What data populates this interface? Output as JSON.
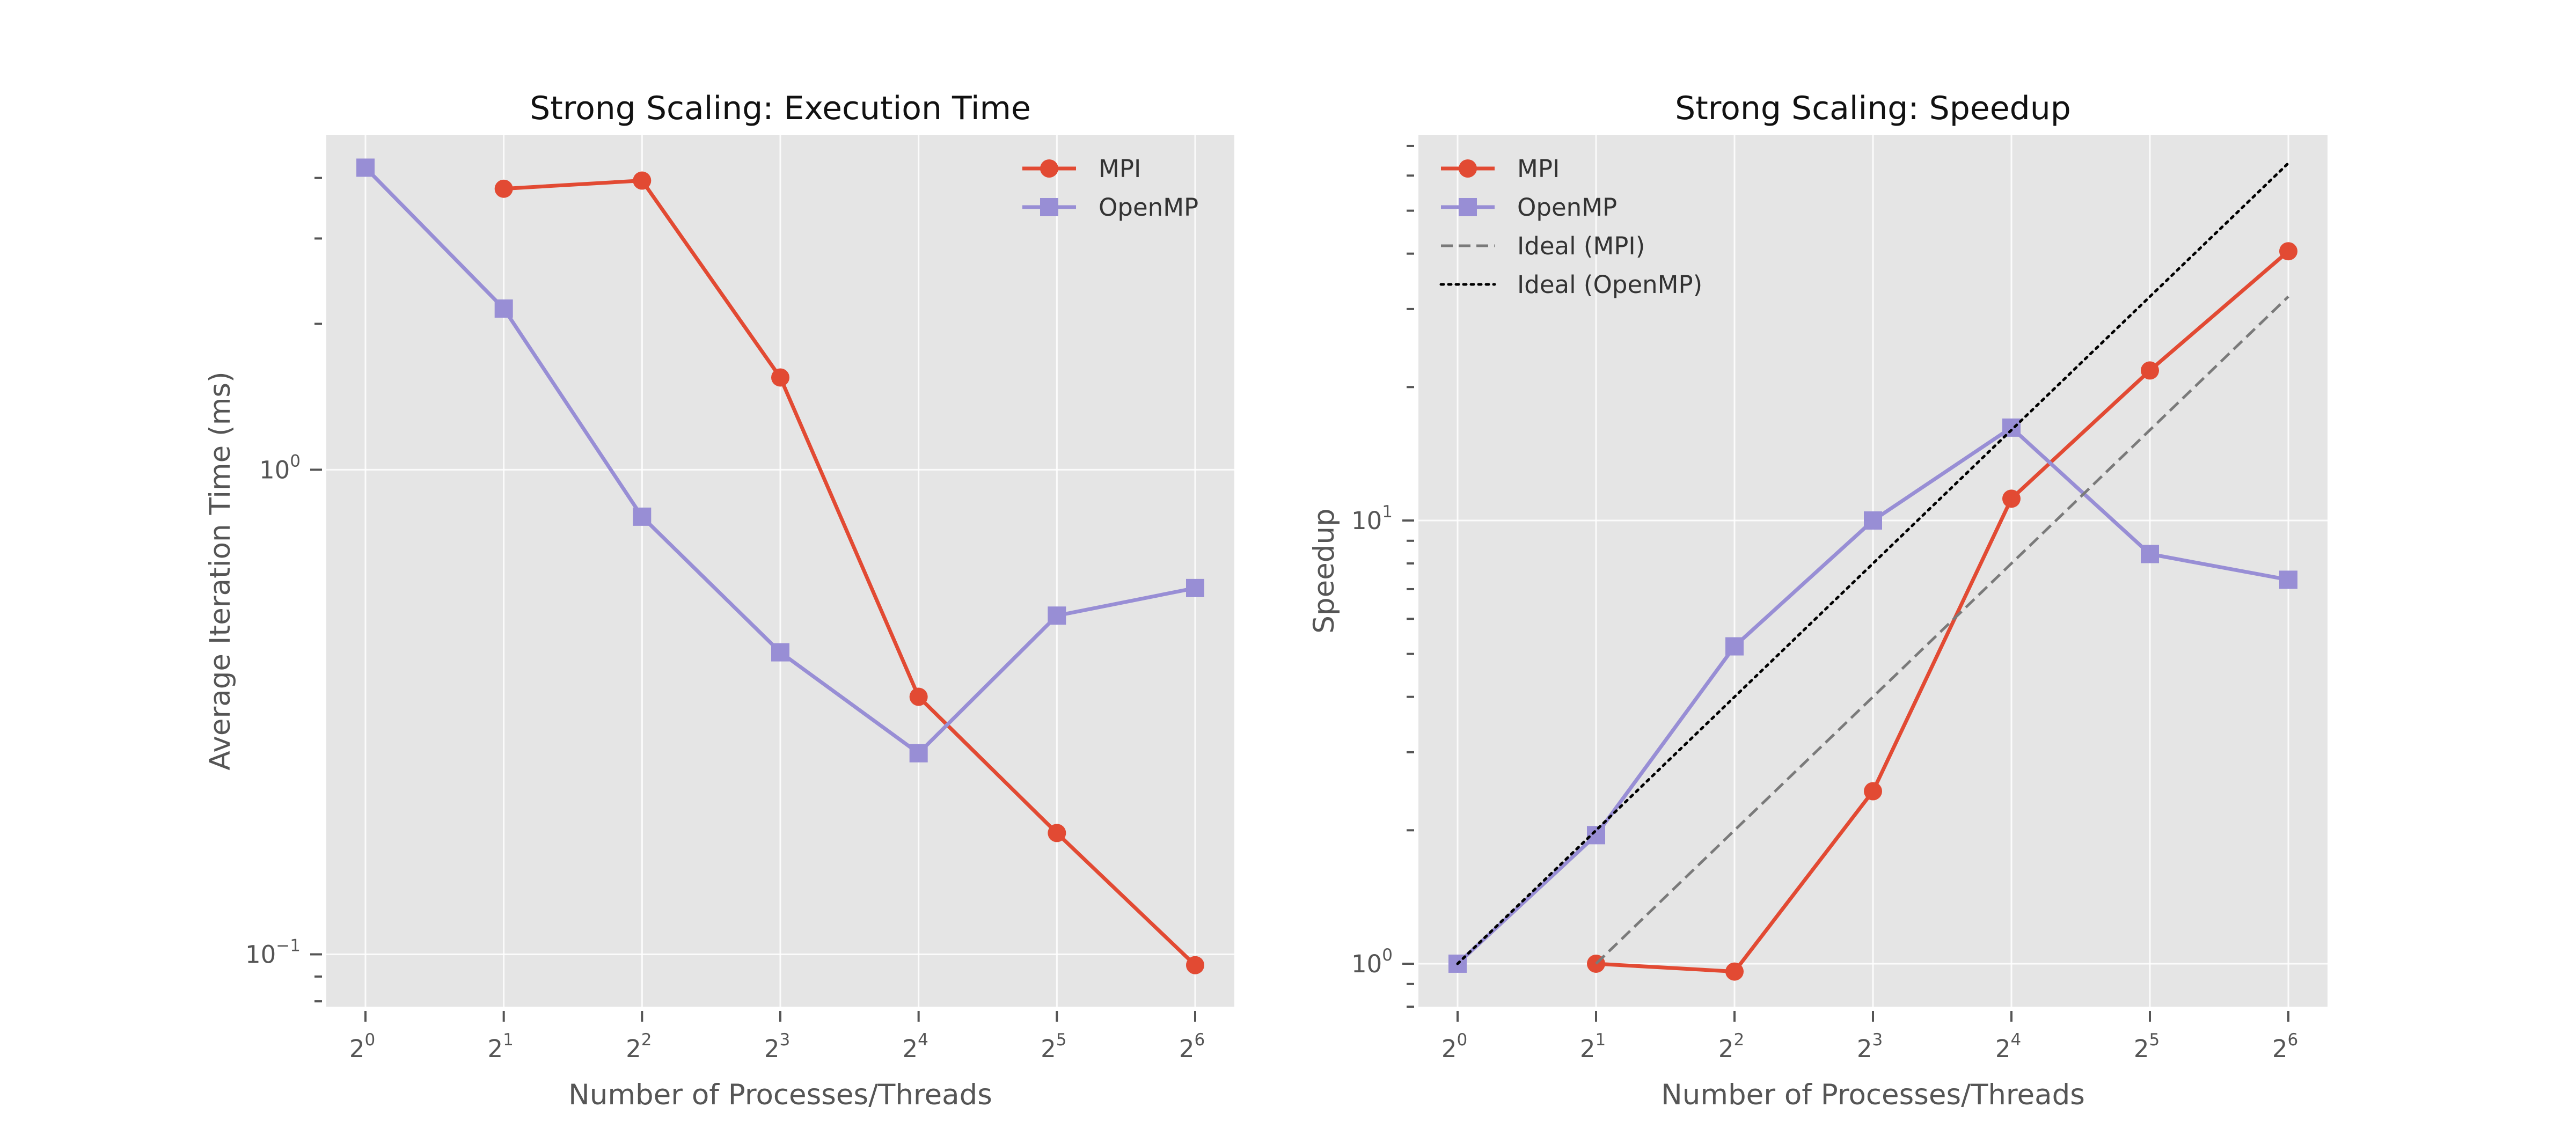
{
  "colors": {
    "mpi": "#E24A33",
    "openmp": "#988ED5",
    "ideal_mpi": "#7a7a7a",
    "ideal_openmp": "#000000",
    "plot_bg": "#E5E5E5",
    "grid": "#FFFFFF"
  },
  "chart_data": [
    {
      "type": "line",
      "title": "Strong Scaling: Execution Time",
      "xlabel": "Number of Processes/Threads",
      "ylabel": "Average Iteration Time (ms)",
      "xscale": "log2",
      "yscale": "log10",
      "xticks": [
        {
          "base": "2",
          "exp": "0"
        },
        {
          "base": "2",
          "exp": "1"
        },
        {
          "base": "2",
          "exp": "2"
        },
        {
          "base": "2",
          "exp": "3"
        },
        {
          "base": "2",
          "exp": "4"
        },
        {
          "base": "2",
          "exp": "5"
        },
        {
          "base": "2",
          "exp": "6"
        }
      ],
      "yticks": [
        {
          "base": "10",
          "exp": "0"
        },
        {
          "base": "10",
          "exp": "−1"
        }
      ],
      "grid": true,
      "legend_position": "upper right",
      "series": [
        {
          "name": "MPI",
          "x": [
            2,
            4,
            8,
            16,
            32,
            64
          ],
          "y": [
            3.8,
            3.95,
            1.55,
            0.34,
            0.178,
            0.095
          ],
          "marker": "circle",
          "linestyle": "solid"
        },
        {
          "name": "OpenMP",
          "x": [
            1,
            2,
            4,
            8,
            16,
            32,
            64
          ],
          "y": [
            4.2,
            2.15,
            0.8,
            0.42,
            0.26,
            0.5,
            0.57
          ],
          "marker": "square",
          "linestyle": "solid"
        }
      ]
    },
    {
      "type": "line",
      "title": "Strong Scaling: Speedup",
      "xlabel": "Number of Processes/Threads",
      "ylabel": "Speedup",
      "xscale": "log2",
      "yscale": "log10",
      "xticks": [
        {
          "base": "2",
          "exp": "0"
        },
        {
          "base": "2",
          "exp": "1"
        },
        {
          "base": "2",
          "exp": "2"
        },
        {
          "base": "2",
          "exp": "3"
        },
        {
          "base": "2",
          "exp": "4"
        },
        {
          "base": "2",
          "exp": "5"
        },
        {
          "base": "2",
          "exp": "6"
        }
      ],
      "yticks": [
        {
          "base": "10",
          "exp": "0"
        },
        {
          "base": "10",
          "exp": "1"
        }
      ],
      "grid": true,
      "legend_position": "upper left",
      "series": [
        {
          "name": "MPI",
          "x": [
            2,
            4,
            8,
            16,
            32,
            64
          ],
          "y": [
            1.0,
            0.96,
            2.45,
            11.2,
            21.8,
            40.5
          ],
          "marker": "circle",
          "linestyle": "solid"
        },
        {
          "name": "OpenMP",
          "x": [
            1,
            2,
            4,
            8,
            16,
            32,
            64
          ],
          "y": [
            1.0,
            1.95,
            5.2,
            10.0,
            16.2,
            8.4,
            7.35
          ],
          "marker": "square",
          "linestyle": "solid"
        },
        {
          "name": "Ideal (MPI)",
          "x": [
            2,
            64
          ],
          "y": [
            1,
            32
          ],
          "marker": "none",
          "linestyle": "dashed"
        },
        {
          "name": "Ideal (OpenMP)",
          "x": [
            1,
            64
          ],
          "y": [
            1,
            64
          ],
          "marker": "none",
          "linestyle": "dotted"
        }
      ]
    }
  ]
}
